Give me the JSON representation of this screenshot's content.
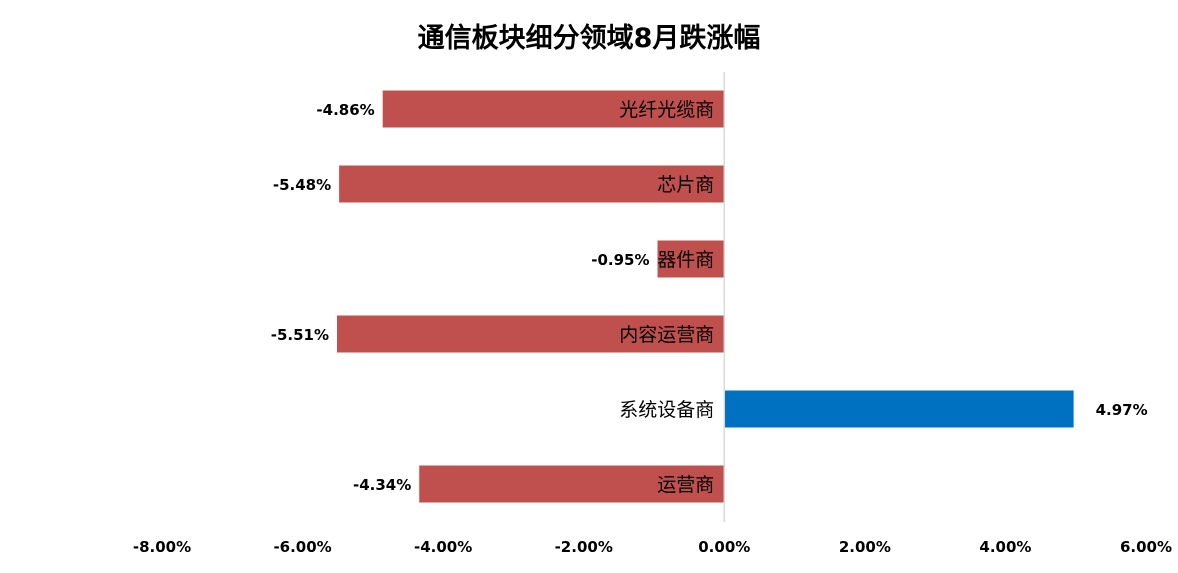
{
  "chart_data": {
    "type": "bar",
    "orientation": "horizontal",
    "title": "通信板块细分领域8月跌涨幅",
    "categories": [
      "光纤光缆商",
      "芯片商",
      "器件商",
      "内容运营商",
      "系统设备商",
      "运营商"
    ],
    "values": [
      -4.86,
      -5.48,
      -0.95,
      -5.51,
      4.97,
      -4.34
    ],
    "value_labels": [
      "-4.86%",
      "-5.48%",
      "-0.95%",
      "-5.51%",
      "4.97%",
      "-4.34%"
    ],
    "xlim": [
      -8,
      6
    ],
    "xticks": [
      -8,
      -6,
      -4,
      -2,
      0,
      2,
      4,
      6
    ],
    "xtick_labels": [
      "-8.00%",
      "-6.00%",
      "-4.00%",
      "-2.00%",
      "0.00%",
      "2.00%",
      "4.00%",
      "6.00%"
    ],
    "xlabel": "",
    "ylabel": "",
    "grid": false,
    "legend": "none",
    "colors": {
      "negative": "#c0504d",
      "positive": "#0070c0",
      "axis": "#d9d9d9",
      "text": "#000000"
    }
  }
}
